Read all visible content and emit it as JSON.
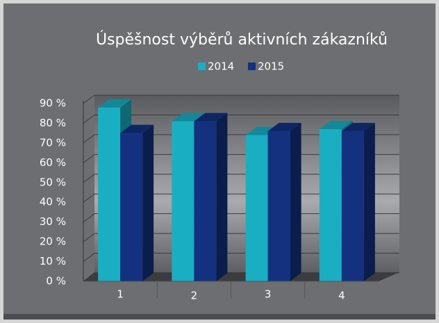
{
  "chart_data": {
    "type": "bar",
    "title": "Úspěšnost výběrů aktivních zákazníků",
    "categories": [
      "1",
      "2",
      "3",
      "4"
    ],
    "series": [
      {
        "name": "2014",
        "color": "#1aaec3",
        "values": [
          88,
          81,
          74,
          77
        ]
      },
      {
        "name": "2015",
        "color": "#13317f",
        "values": [
          75,
          81,
          76,
          76
        ]
      }
    ],
    "ylim": [
      0,
      90
    ],
    "yticks": [
      {
        "value": 0,
        "label": "0 %"
      },
      {
        "value": 10,
        "label": "10 %"
      },
      {
        "value": 20,
        "label": "20 %"
      },
      {
        "value": 30,
        "label": "30 %"
      },
      {
        "value": 40,
        "label": "40 %"
      },
      {
        "value": 50,
        "label": "50 %"
      },
      {
        "value": 60,
        "label": "60 %"
      },
      {
        "value": 70,
        "label": "70 %"
      },
      {
        "value": 80,
        "label": "80 %"
      },
      {
        "value": 90,
        "label": "90 %"
      }
    ],
    "grid": true,
    "legend": "top"
  }
}
